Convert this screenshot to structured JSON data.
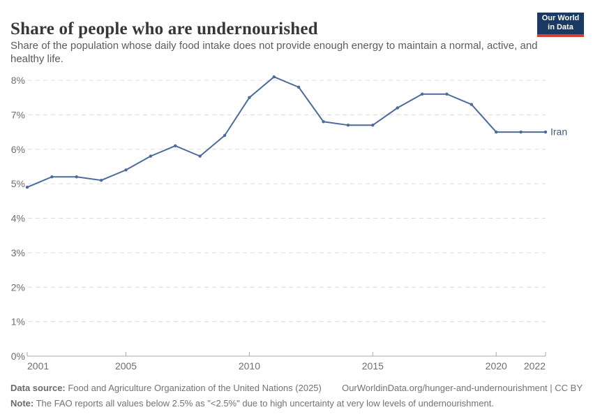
{
  "header": {
    "title": "Share of people who are undernourished",
    "subtitle": "Share of the population whose daily food intake does not provide enough energy to maintain a normal, active, and healthy life.",
    "logo_line1": "Our World",
    "logo_line2": "in Data"
  },
  "chart_data": {
    "type": "line",
    "title": "Share of people who are undernourished",
    "entity_label": "Iran",
    "x": [
      2001,
      2002,
      2003,
      2004,
      2005,
      2006,
      2007,
      2008,
      2009,
      2010,
      2011,
      2012,
      2013,
      2014,
      2015,
      2016,
      2017,
      2018,
      2019,
      2020,
      2021,
      2022
    ],
    "values": [
      4.9,
      5.2,
      5.2,
      5.1,
      5.4,
      5.8,
      6.1,
      5.8,
      6.4,
      7.5,
      8.1,
      7.8,
      6.8,
      6.7,
      6.7,
      7.2,
      7.6,
      7.6,
      7.3,
      6.5,
      6.5,
      6.5
    ],
    "unit": "%",
    "ylim": [
      0,
      8
    ],
    "ytick_step": 1,
    "xticks": [
      2001,
      2005,
      2010,
      2015,
      2020,
      2022
    ],
    "grid": true,
    "legend_position": "end-of-line",
    "line_color": "#4C6A9C",
    "label_color": "#3D5A8C"
  },
  "colors": {
    "logo_bg": "#1a3a63",
    "logo_stripe": "#dc3d33",
    "gridline": "#dcdcdc",
    "axis": "#a9a9a9",
    "tick_label": "#6e6e6e"
  },
  "footer": {
    "datasource_bold": "Data source:",
    "datasource_text": " Food and Agriculture Organization of the United Nations (2025)",
    "link_text": "OurWorldinData.org/hunger-and-undernourishment | CC BY",
    "note_bold": "Note:",
    "note_text": " The FAO reports all values below 2.5% as \"<2.5%\" due to high uncertainty at very low levels of undernourishment."
  }
}
